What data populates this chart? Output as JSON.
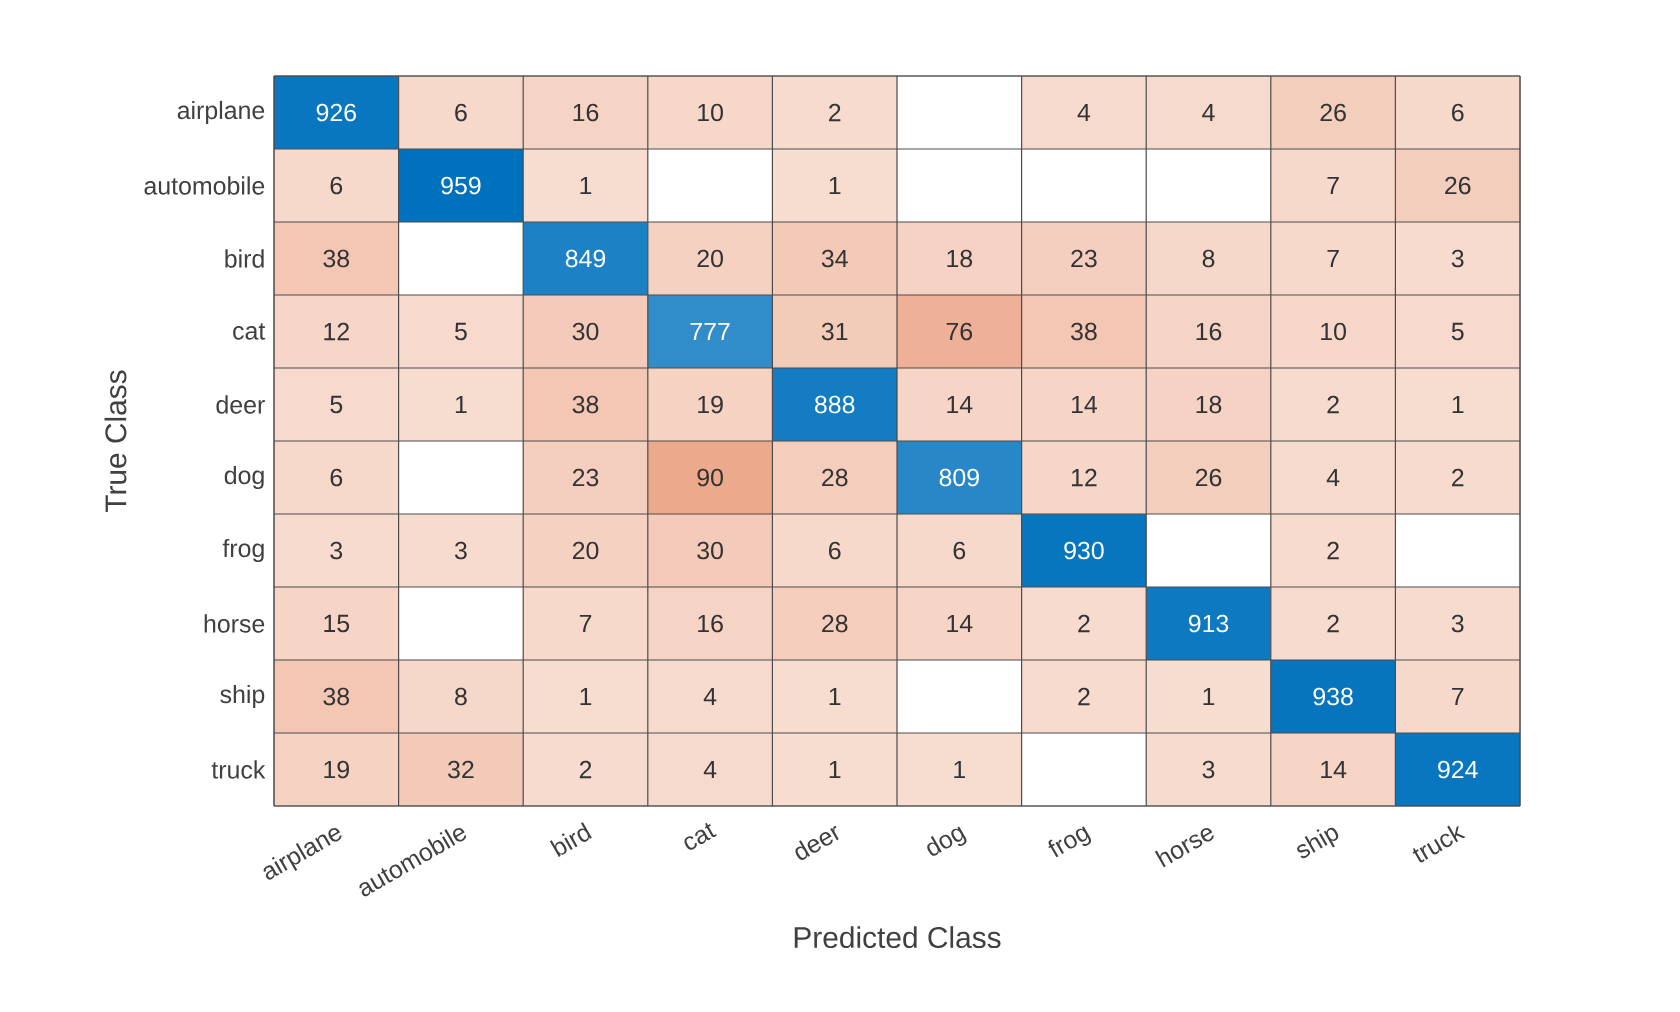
{
  "chart_data": {
    "type": "heatmap",
    "xlabel": "Predicted Class",
    "ylabel": "True Class",
    "data_labels": true,
    "categories": [
      "airplane",
      "automobile",
      "bird",
      "cat",
      "deer",
      "dog",
      "frog",
      "horse",
      "ship",
      "truck"
    ],
    "y_categories": [
      "airplane",
      "automobile",
      "bird",
      "cat",
      "deer",
      "dog",
      "frog",
      "horse",
      "ship",
      "truck"
    ],
    "cells": [
      [
        926,
        6,
        16,
        10,
        2,
        null,
        4,
        4,
        26,
        6
      ],
      [
        6,
        959,
        1,
        null,
        1,
        null,
        null,
        null,
        7,
        26
      ],
      [
        38,
        null,
        849,
        20,
        34,
        18,
        23,
        8,
        7,
        3
      ],
      [
        12,
        5,
        30,
        777,
        31,
        76,
        38,
        16,
        10,
        5
      ],
      [
        5,
        1,
        38,
        19,
        888,
        14,
        14,
        18,
        2,
        1
      ],
      [
        6,
        null,
        23,
        90,
        28,
        809,
        12,
        26,
        4,
        2
      ],
      [
        3,
        3,
        20,
        30,
        6,
        6,
        930,
        null,
        2,
        null
      ],
      [
        15,
        null,
        7,
        16,
        28,
        14,
        2,
        913,
        2,
        3
      ],
      [
        38,
        8,
        1,
        4,
        1,
        null,
        2,
        1,
        938,
        7
      ],
      [
        19,
        32,
        2,
        4,
        1,
        1,
        null,
        3,
        14,
        924
      ]
    ]
  }
}
